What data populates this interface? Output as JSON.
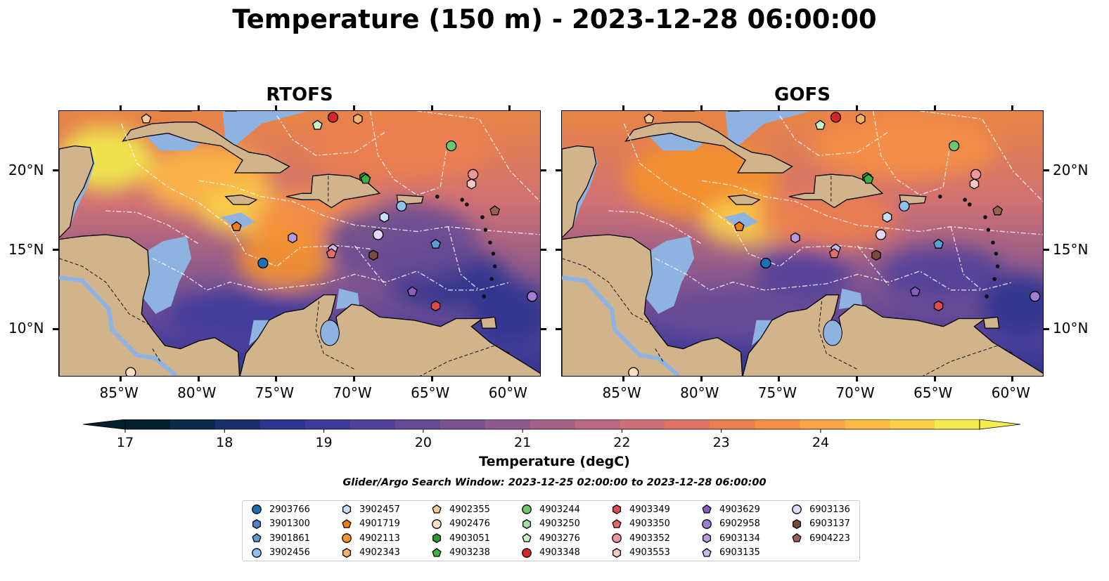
{
  "title": "Temperature (150 m) - 2023-12-28 06:00:00",
  "panels": [
    {
      "title": "RTOFS"
    },
    {
      "title": "GOFS"
    }
  ],
  "lon_ticks": [
    "85°W",
    "80°W",
    "75°W",
    "70°W",
    "65°W",
    "60°W"
  ],
  "lat_ticks": [
    "20°N",
    "15°N",
    "10°N"
  ],
  "colorbar": {
    "label": "Temperature (degC)",
    "min": 17,
    "max": 24,
    "ticks": [
      "17",
      "18",
      "19",
      "20",
      "21",
      "22",
      "23",
      "24"
    ],
    "colors": [
      "#04202f",
      "#0c2a4a",
      "#1b2f6a",
      "#2d3590",
      "#3e3a9b",
      "#52419a",
      "#664a95",
      "#7a5291",
      "#8f5a8c",
      "#a46187",
      "#b96882",
      "#cc6f77",
      "#de7564",
      "#ec7f50",
      "#f58f45",
      "#fba245",
      "#fdb845",
      "#f9d048",
      "#f2ec4e"
    ]
  },
  "search_window": "Glider/Argo Search Window: 2023-12-25 02:00:00 to 2023-12-28 06:00:00",
  "colors": {
    "land": "#d2b48c",
    "shelf": "#8fb3e0",
    "hot": "#f5a14a",
    "cool": "#3e3a9b"
  },
  "legend": [
    {
      "id": "2903766",
      "color": "#1f6fb5",
      "marker": "circle"
    },
    {
      "id": "3901300",
      "color": "#4a86c8",
      "marker": "hexagon"
    },
    {
      "id": "3901861",
      "color": "#5a9fd4",
      "marker": "pentagon"
    },
    {
      "id": "3902456",
      "color": "#8ec0eb",
      "marker": "circle"
    },
    {
      "id": "3902457",
      "color": "#c6e0f5",
      "marker": "hexagon"
    },
    {
      "id": "4901719",
      "color": "#f07e17",
      "marker": "pentagon"
    },
    {
      "id": "4902113",
      "color": "#f5922e",
      "marker": "circle"
    },
    {
      "id": "4902343",
      "color": "#f7b26a",
      "marker": "hexagon"
    },
    {
      "id": "4902355",
      "color": "#f9c995",
      "marker": "pentagon"
    },
    {
      "id": "4902476",
      "color": "#fde0c4",
      "marker": "circle"
    },
    {
      "id": "4903051",
      "color": "#2a9a2a",
      "marker": "hexagon"
    },
    {
      "id": "4903238",
      "color": "#3bb043",
      "marker": "pentagon"
    },
    {
      "id": "4903244",
      "color": "#6cc86a",
      "marker": "circle"
    },
    {
      "id": "4903250",
      "color": "#9ee09a",
      "marker": "hexagon"
    },
    {
      "id": "4903276",
      "color": "#c9f2c4",
      "marker": "pentagon"
    },
    {
      "id": "4903348",
      "color": "#d62728",
      "marker": "circle"
    },
    {
      "id": "4903349",
      "color": "#e04a4a",
      "marker": "hexagon"
    },
    {
      "id": "4903350",
      "color": "#e8696b",
      "marker": "pentagon"
    },
    {
      "id": "4903352",
      "color": "#f09696",
      "marker": "circle"
    },
    {
      "id": "4903553",
      "color": "#f8c4c4",
      "marker": "hexagon"
    },
    {
      "id": "4903629",
      "color": "#8a5cc0",
      "marker": "pentagon"
    },
    {
      "id": "6902958",
      "color": "#a07ed0",
      "marker": "circle"
    },
    {
      "id": "6903134",
      "color": "#b89ade",
      "marker": "hexagon"
    },
    {
      "id": "6903135",
      "color": "#cdb6eb",
      "marker": "pentagon"
    },
    {
      "id": "6903136",
      "color": "#e6d6f7",
      "marker": "circle"
    },
    {
      "id": "6903137",
      "color": "#7a4a3a",
      "marker": "hexagon"
    },
    {
      "id": "6904223",
      "color": "#9a6050",
      "marker": "pentagon"
    }
  ],
  "floats": [
    {
      "id": "4902476",
      "lon": -84.4,
      "lat": 7.3
    },
    {
      "id": "4902355",
      "lon": -83.4,
      "lat": 23.3
    },
    {
      "id": "4903348",
      "lon": -71.4,
      "lat": 23.4
    },
    {
      "id": "4902343",
      "lon": -69.8,
      "lat": 23.3
    },
    {
      "id": "4903276",
      "lon": -72.4,
      "lat": 22.9
    },
    {
      "id": "4903244",
      "lon": -63.8,
      "lat": 21.6
    },
    {
      "id": "4903051",
      "lon": -69.4,
      "lat": 19.6
    },
    {
      "id": "4903238",
      "lon": -69.3,
      "lat": 19.5
    },
    {
      "id": "4903352",
      "lon": -62.4,
      "lat": 19.8
    },
    {
      "id": "4903553",
      "lon": -62.5,
      "lat": 19.2
    },
    {
      "id": "3902456",
      "lon": -67.0,
      "lat": 17.8
    },
    {
      "id": "3902457",
      "lon": -68.1,
      "lat": 17.1
    },
    {
      "id": "4901719",
      "lon": -77.6,
      "lat": 16.5
    },
    {
      "id": "6904223",
      "lon": -61.0,
      "lat": 17.5
    },
    {
      "id": "6903136",
      "lon": -68.5,
      "lat": 16.0
    },
    {
      "id": "6903134",
      "lon": -74.0,
      "lat": 15.8
    },
    {
      "id": "3901861",
      "lon": -64.8,
      "lat": 15.4
    },
    {
      "id": "6903135",
      "lon": -71.4,
      "lat": 15.1
    },
    {
      "id": "4903350",
      "lon": -71.5,
      "lat": 14.8
    },
    {
      "id": "6903137",
      "lon": -68.8,
      "lat": 14.7
    },
    {
      "id": "2903766",
      "lon": -75.9,
      "lat": 14.2
    },
    {
      "id": "4903629",
      "lon": -66.3,
      "lat": 12.4
    },
    {
      "id": "4903349",
      "lon": -64.8,
      "lat": 11.5
    },
    {
      "id": "6902958",
      "lon": -58.6,
      "lat": 12.1
    }
  ],
  "blobs_rtofs": [
    {
      "lon": -86.0,
      "lat": 20.8,
      "rx": 3.0,
      "ry": 2.0,
      "c": "#f2ec4e"
    },
    {
      "lon": -79.5,
      "lat": 19.5,
      "rx": 4.0,
      "ry": 2.2,
      "c": "#fdb845"
    },
    {
      "lon": -77.0,
      "lat": 17.5,
      "rx": 3.0,
      "ry": 1.5,
      "c": "#f9d048"
    },
    {
      "lon": -72.0,
      "lat": 17.0,
      "rx": 4.5,
      "ry": 2.0,
      "c": "#f58f45"
    },
    {
      "lon": -67.0,
      "lat": 21.5,
      "rx": 6.0,
      "ry": 2.0,
      "c": "#ec7f50"
    },
    {
      "lon": -74.5,
      "lat": 14.5,
      "rx": 3.0,
      "ry": 2.0,
      "c": "#f5922e"
    },
    {
      "lon": -64.0,
      "lat": 13.2,
      "rx": 4.0,
      "ry": 1.8,
      "c": "#2d3590"
    },
    {
      "lon": -77.0,
      "lat": 11.0,
      "rx": 5.0,
      "ry": 1.5,
      "c": "#3e3a9b"
    },
    {
      "lon": -60.0,
      "lat": 11.0,
      "rx": 2.5,
      "ry": 2.0,
      "c": "#2d3590"
    },
    {
      "lon": -67.0,
      "lat": 15.5,
      "rx": 5.0,
      "ry": 2.5,
      "c": "#664a95"
    }
  ],
  "blobs_gofs": [
    {
      "lon": -80.0,
      "lat": 19.5,
      "rx": 5.0,
      "ry": 2.5,
      "c": "#f5922e"
    },
    {
      "lon": -77.0,
      "lat": 16.8,
      "rx": 3.0,
      "ry": 1.5,
      "c": "#f9d048"
    },
    {
      "lon": -72.0,
      "lat": 17.0,
      "rx": 4.5,
      "ry": 2.0,
      "c": "#ec7f50"
    },
    {
      "lon": -67.0,
      "lat": 21.5,
      "rx": 6.0,
      "ry": 2.0,
      "c": "#f58f45"
    },
    {
      "lon": -73.5,
      "lat": 13.5,
      "rx": 3.0,
      "ry": 1.8,
      "c": "#52419a"
    },
    {
      "lon": -64.5,
      "lat": 13.5,
      "rx": 4.0,
      "ry": 1.8,
      "c": "#52419a"
    },
    {
      "lon": -77.0,
      "lat": 11.0,
      "rx": 5.0,
      "ry": 1.5,
      "c": "#664a95"
    },
    {
      "lon": -59.5,
      "lat": 11.5,
      "rx": 2.5,
      "ry": 2.0,
      "c": "#2d3590"
    }
  ]
}
